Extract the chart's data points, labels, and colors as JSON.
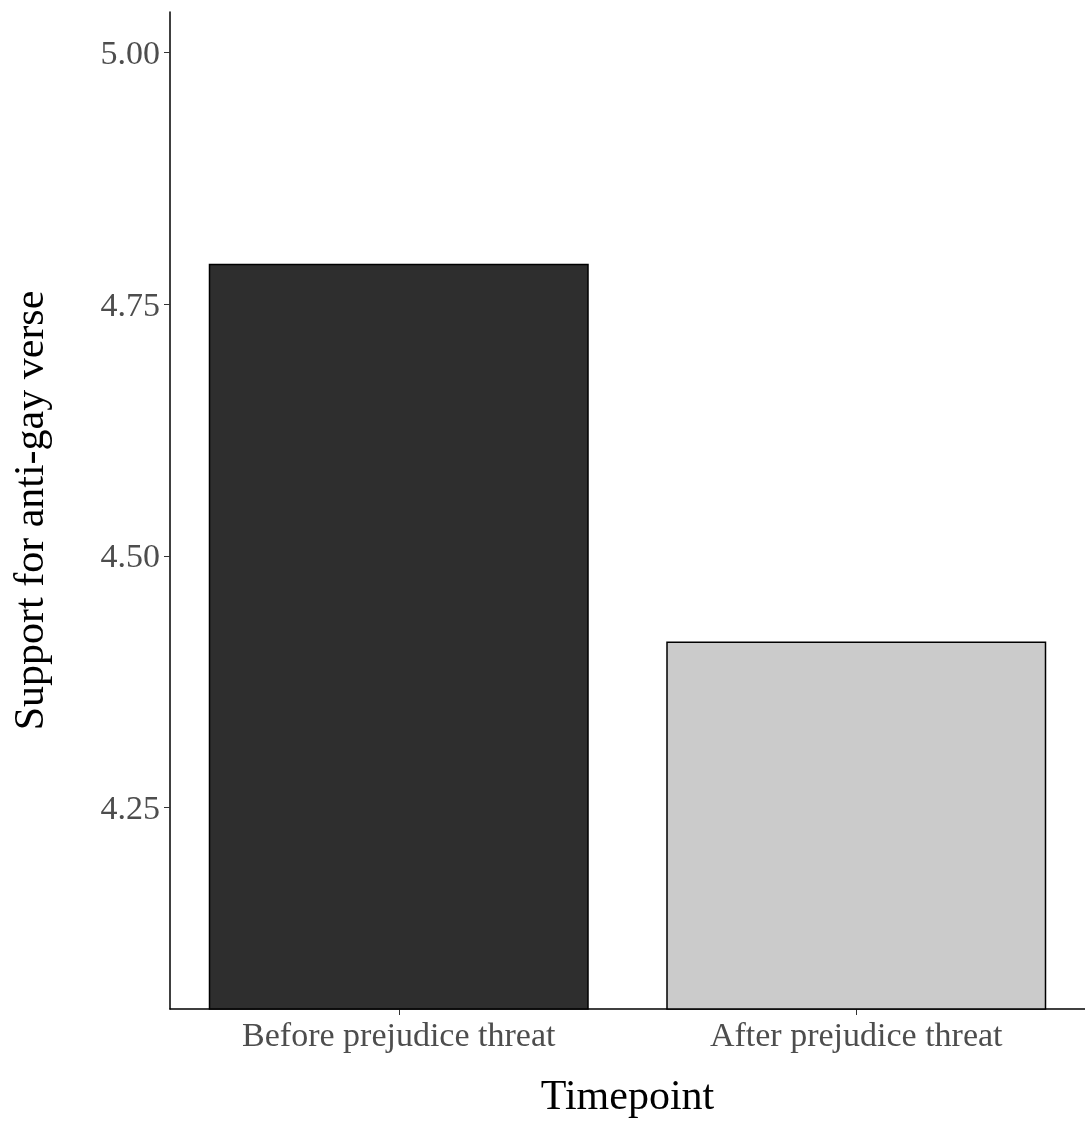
{
  "chart_data": {
    "type": "bar",
    "xlabel": "Timepoint",
    "ylabel": "Support for anti-gay verse",
    "categories": [
      "Before prejudice threat",
      "After prejudice threat"
    ],
    "values": [
      4.79,
      4.415
    ],
    "colors": [
      "#2e2e2e",
      "#cbcbcb"
    ],
    "ylim": [
      4.05,
      5.04
    ],
    "yticks": [
      {
        "value": 4.25,
        "label": "4.25"
      },
      {
        "value": 4.5,
        "label": "4.50"
      },
      {
        "value": 4.75,
        "label": "4.75"
      },
      {
        "value": 5,
        "label": "5.00"
      }
    ],
    "grid": false
  }
}
